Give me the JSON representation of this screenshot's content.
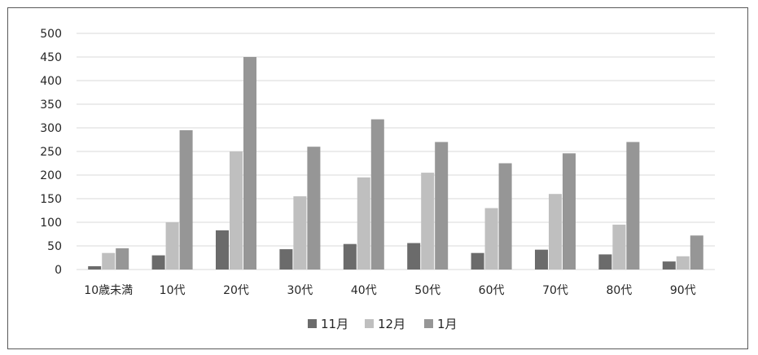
{
  "chart_data": {
    "type": "bar",
    "title": "",
    "xlabel": "",
    "ylabel": "",
    "categories": [
      "10歳未満",
      "10代",
      "20代",
      "30代",
      "40代",
      "50代",
      "60代",
      "70代",
      "80代",
      "90代"
    ],
    "series": [
      {
        "name": "11月",
        "color": "#6b6b6b",
        "values": [
          7,
          30,
          83,
          43,
          54,
          56,
          35,
          42,
          32,
          17
        ]
      },
      {
        "name": "12月",
        "color": "#bfbfbf",
        "values": [
          35,
          100,
          250,
          155,
          195,
          205,
          130,
          160,
          95,
          28
        ]
      },
      {
        "name": "1月",
        "color": "#969696",
        "values": [
          45,
          295,
          450,
          260,
          318,
          270,
          225,
          246,
          270,
          72
        ]
      }
    ],
    "ylim": [
      0,
      500
    ],
    "yticks": [
      0,
      50,
      100,
      150,
      200,
      250,
      300,
      350,
      400,
      450,
      500
    ],
    "grid": true,
    "legend_position": "bottom"
  }
}
